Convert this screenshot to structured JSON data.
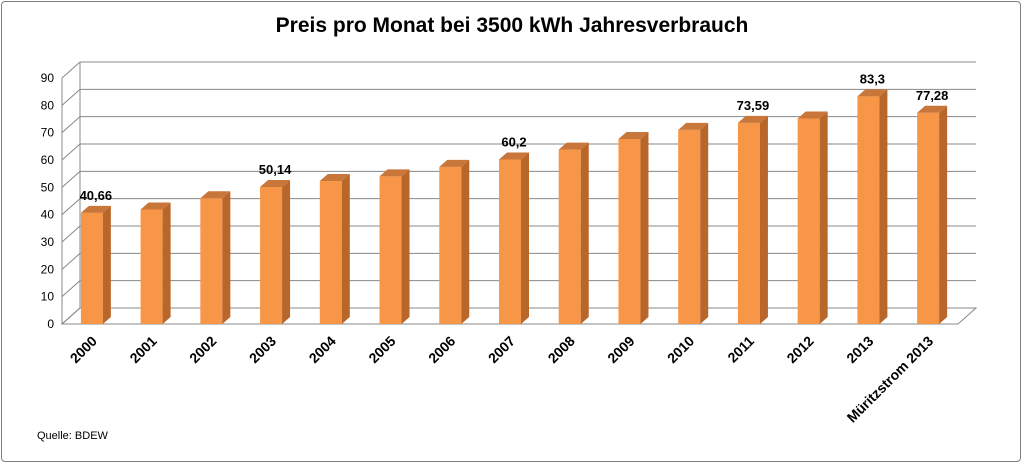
{
  "chart_data": {
    "type": "bar",
    "title": "Preis pro Monat bei 3500 kWh Jahresverbrauch",
    "categories": [
      "2000",
      "2001",
      "2002",
      "2003",
      "2004",
      "2005",
      "2006",
      "2007",
      "2008",
      "2009",
      "2010",
      "2011",
      "2012",
      "2013",
      "Müritzstrom 2013"
    ],
    "values": [
      40.66,
      41.9,
      46.0,
      50.14,
      52.3,
      54.0,
      57.5,
      60.2,
      63.8,
      67.7,
      71.0,
      73.59,
      75.2,
      83.3,
      77.28
    ],
    "data_labels": [
      {
        "index": 0,
        "text": "40,66"
      },
      {
        "index": 3,
        "text": "50,14"
      },
      {
        "index": 7,
        "text": "60,2"
      },
      {
        "index": 11,
        "text": "73,59"
      },
      {
        "index": 13,
        "text": "83,3"
      },
      {
        "index": 14,
        "text": "77,28"
      }
    ],
    "yticks": [
      "0",
      "10",
      "20",
      "30",
      "40",
      "50",
      "60",
      "70",
      "80",
      "90"
    ],
    "ylim": [
      0,
      90
    ],
    "xlabel": "",
    "ylabel": "",
    "grid": true,
    "legend": "none",
    "colors": {
      "bar_front": "#f79646",
      "bar_side": "#b8662a",
      "bar_top": "#c8763a",
      "grid": "#888888"
    }
  },
  "source": "Quelle:  BDEW"
}
